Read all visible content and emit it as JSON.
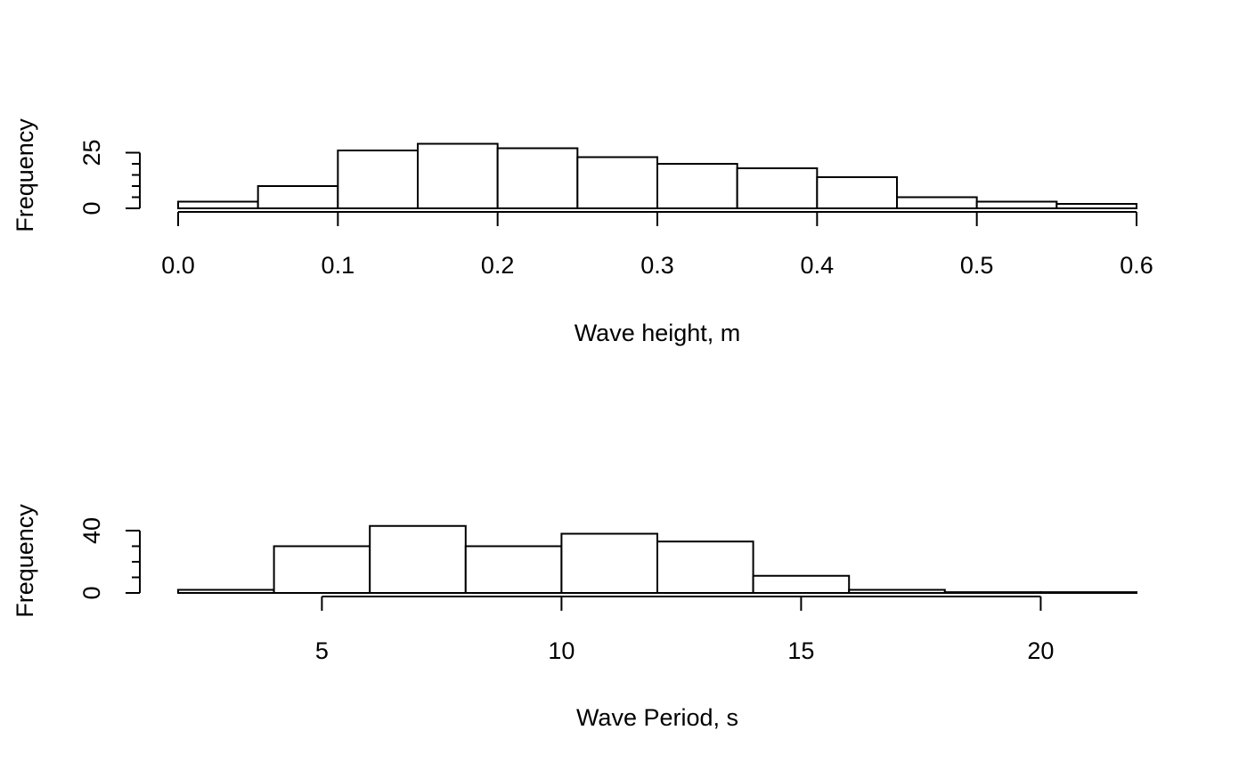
{
  "chart_data": [
    {
      "type": "bar",
      "subtype": "histogram",
      "title": "",
      "xlabel": "Wave height, m",
      "ylabel": "Frequency",
      "bins": [
        0.0,
        0.05,
        0.1,
        0.15,
        0.2,
        0.25,
        0.3,
        0.35,
        0.4,
        0.45,
        0.5,
        0.55,
        0.6
      ],
      "counts": [
        3,
        10,
        26,
        29,
        27,
        23,
        20,
        18,
        14,
        5,
        3,
        2
      ],
      "xlim": [
        0.0,
        0.6
      ],
      "ylim": [
        0,
        30
      ],
      "x_ticks": [
        0.0,
        0.1,
        0.2,
        0.3,
        0.4,
        0.5,
        0.6
      ],
      "x_tick_labels": [
        "0.0",
        "0.1",
        "0.2",
        "0.3",
        "0.4",
        "0.5",
        "0.6"
      ],
      "y_ticks": [
        0,
        25
      ],
      "y_tick_labels": [
        "0",
        "25"
      ],
      "y_minor_step": 5,
      "grid": false
    },
    {
      "type": "bar",
      "subtype": "histogram",
      "title": "",
      "xlabel": "Wave Period, s",
      "ylabel": "Frequency",
      "bins": [
        2,
        4,
        6,
        8,
        10,
        12,
        14,
        16,
        18,
        20,
        22
      ],
      "counts": [
        2,
        30,
        43,
        30,
        38,
        33,
        11,
        2,
        0.5,
        0.5
      ],
      "xlim": [
        2,
        22
      ],
      "ylim": [
        0,
        40
      ],
      "x_ticks": [
        5,
        10,
        15,
        20
      ],
      "x_tick_labels": [
        "5",
        "10",
        "15",
        "20"
      ],
      "y_ticks": [
        0,
        40
      ],
      "y_tick_labels": [
        "0",
        "40"
      ],
      "y_minor_step": 10,
      "grid": false
    }
  ]
}
